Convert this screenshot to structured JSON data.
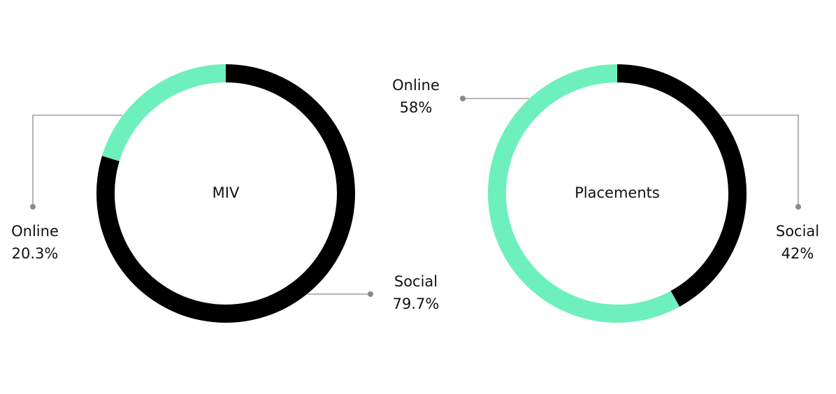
{
  "chart_data": [
    {
      "type": "donut",
      "title": "MIV",
      "categories": [
        "Social",
        "Online"
      ],
      "values": [
        79.7,
        20.3
      ],
      "value_labels": [
        "79.7%",
        "20.3%"
      ],
      "colors": [
        "#000000",
        "#6ef0bd"
      ]
    },
    {
      "type": "donut",
      "title": "Placements",
      "categories": [
        "Social",
        "Online"
      ],
      "values": [
        42,
        58
      ],
      "value_labels": [
        "42%",
        "58%"
      ],
      "colors": [
        "#000000",
        "#6ef0bd"
      ]
    }
  ]
}
